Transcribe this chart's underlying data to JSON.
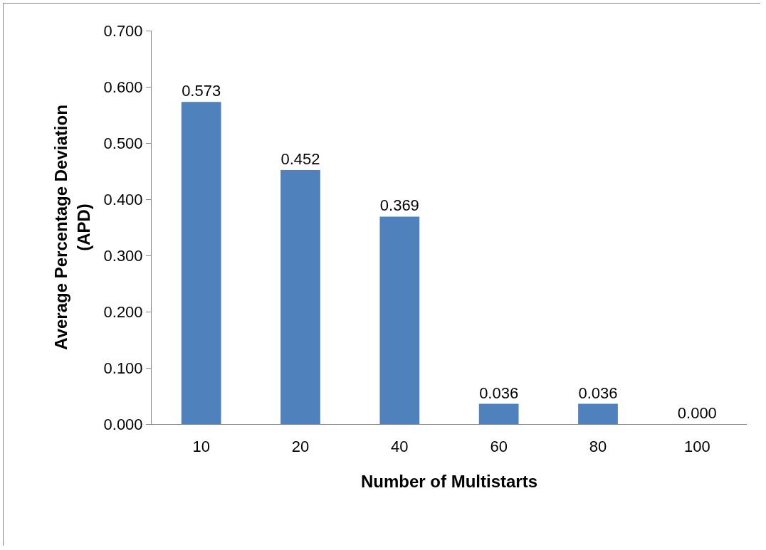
{
  "chart_data": {
    "type": "bar",
    "xlabel": "Number of Multistarts",
    "ylabel": "Average Percentage Deviation\n(APD)",
    "categories": [
      "10",
      "20",
      "40",
      "60",
      "80",
      "100"
    ],
    "values": [
      0.573,
      0.452,
      0.369,
      0.036,
      0.036,
      0.0
    ],
    "value_labels": [
      "0.573",
      "0.452",
      "0.369",
      "0.036",
      "0.036",
      "0.000"
    ],
    "color": "#4f81bd",
    "ylim": [
      0,
      0.7
    ],
    "yticks": [
      {
        "value": 0,
        "label": "0.000"
      },
      {
        "value": 0.1,
        "label": "0.100"
      },
      {
        "value": 0.2,
        "label": "0.200"
      },
      {
        "value": 0.3,
        "label": "0.300"
      },
      {
        "value": 0.4,
        "label": "0.400"
      },
      {
        "value": 0.5,
        "label": "0.500"
      },
      {
        "value": 0.6,
        "label": "0.600"
      },
      {
        "value": 0.7,
        "label": "0.700"
      }
    ],
    "grid": false
  }
}
